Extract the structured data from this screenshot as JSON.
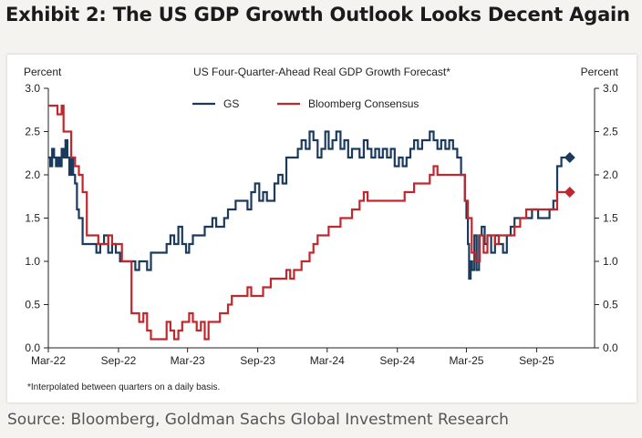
{
  "exhibit_title": "Exhibit 2: The US GDP Growth Outlook Looks Decent Again",
  "source": "Source: Bloomberg, Goldman Sachs Global Investment Research",
  "chart_data": {
    "type": "line",
    "title": "US Four-Quarter-Ahead Real GDP Growth Forecast*",
    "ylabel_left": "Percent",
    "ylabel_right": "Percent",
    "footnote": "*Interpolated between quarters on a daily basis.",
    "ylim": [
      0,
      3
    ],
    "yticks": [
      "0.0",
      "0.5",
      "1.0",
      "1.5",
      "2.0",
      "2.5",
      "3.0"
    ],
    "xlim": [
      "2022-03-01",
      "2026-01-31"
    ],
    "xticks": [
      {
        "date": "2022-03-01",
        "label": "Mar-22"
      },
      {
        "date": "2022-09-01",
        "label": "Sep-22"
      },
      {
        "date": "2023-03-01",
        "label": "Mar-23"
      },
      {
        "date": "2023-09-01",
        "label": "Sep-23"
      },
      {
        "date": "2024-03-01",
        "label": "Mar-24"
      },
      {
        "date": "2024-09-01",
        "label": "Sep-24"
      },
      {
        "date": "2025-03-01",
        "label": "Mar-25"
      },
      {
        "date": "2025-09-01",
        "label": "Sep-25"
      }
    ],
    "legend_position": "top-center",
    "series": [
      {
        "name": "GS",
        "color": "#1b3a5c",
        "end_marker": "diamond",
        "points": [
          [
            "2022-03-01",
            2.2
          ],
          [
            "2022-03-06",
            2.1
          ],
          [
            "2022-03-11",
            2.3
          ],
          [
            "2022-03-16",
            2.2
          ],
          [
            "2022-03-21",
            2.1
          ],
          [
            "2022-03-26",
            2.2
          ],
          [
            "2022-03-31",
            2.1
          ],
          [
            "2022-04-05",
            2.3
          ],
          [
            "2022-04-10",
            2.2
          ],
          [
            "2022-04-15",
            2.4
          ],
          [
            "2022-04-20",
            2.2
          ],
          [
            "2022-04-25",
            2.0
          ],
          [
            "2022-04-30",
            2.2
          ],
          [
            "2022-05-05",
            2.0
          ],
          [
            "2022-05-10",
            1.9
          ],
          [
            "2022-05-15",
            1.6
          ],
          [
            "2022-05-20",
            1.5
          ],
          [
            "2022-05-25",
            1.5
          ],
          [
            "2022-05-30",
            1.2
          ],
          [
            "2022-06-05",
            1.2
          ],
          [
            "2022-06-15",
            1.2
          ],
          [
            "2022-06-25",
            1.2
          ],
          [
            "2022-07-05",
            1.1
          ],
          [
            "2022-07-15",
            1.2
          ],
          [
            "2022-07-25",
            1.3
          ],
          [
            "2022-08-05",
            1.1
          ],
          [
            "2022-08-15",
            1.2
          ],
          [
            "2022-08-25",
            1.1
          ],
          [
            "2022-09-05",
            1.0
          ],
          [
            "2022-09-15",
            1.0
          ],
          [
            "2022-09-25",
            1.0
          ],
          [
            "2022-10-05",
            1.0
          ],
          [
            "2022-10-15",
            0.9
          ],
          [
            "2022-10-25",
            1.0
          ],
          [
            "2022-11-05",
            1.0
          ],
          [
            "2022-11-15",
            0.9
          ],
          [
            "2022-11-25",
            1.1
          ],
          [
            "2022-12-05",
            1.1
          ],
          [
            "2022-12-15",
            1.1
          ],
          [
            "2022-12-25",
            1.1
          ],
          [
            "2023-01-05",
            1.2
          ],
          [
            "2023-01-15",
            1.3
          ],
          [
            "2023-01-25",
            1.2
          ],
          [
            "2023-02-05",
            1.4
          ],
          [
            "2023-02-15",
            1.2
          ],
          [
            "2023-02-25",
            1.1
          ],
          [
            "2023-03-05",
            1.2
          ],
          [
            "2023-03-15",
            1.3
          ],
          [
            "2023-03-25",
            1.3
          ],
          [
            "2023-04-05",
            1.3
          ],
          [
            "2023-04-15",
            1.4
          ],
          [
            "2023-04-25",
            1.4
          ],
          [
            "2023-05-05",
            1.5
          ],
          [
            "2023-05-15",
            1.4
          ],
          [
            "2023-05-25",
            1.4
          ],
          [
            "2023-06-05",
            1.5
          ],
          [
            "2023-06-15",
            1.6
          ],
          [
            "2023-06-25",
            1.6
          ],
          [
            "2023-07-05",
            1.7
          ],
          [
            "2023-07-15",
            1.7
          ],
          [
            "2023-07-25",
            1.7
          ],
          [
            "2023-08-05",
            1.6
          ],
          [
            "2023-08-15",
            1.8
          ],
          [
            "2023-08-25",
            1.9
          ],
          [
            "2023-09-05",
            1.7
          ],
          [
            "2023-09-15",
            1.8
          ],
          [
            "2023-09-25",
            1.7
          ],
          [
            "2023-10-05",
            1.7
          ],
          [
            "2023-10-15",
            1.9
          ],
          [
            "2023-10-25",
            2.0
          ],
          [
            "2023-11-05",
            1.9
          ],
          [
            "2023-11-15",
            2.2
          ],
          [
            "2023-11-25",
            2.2
          ],
          [
            "2023-12-05",
            2.2
          ],
          [
            "2023-12-15",
            2.3
          ],
          [
            "2023-12-25",
            2.4
          ],
          [
            "2024-01-05",
            2.3
          ],
          [
            "2024-01-15",
            2.5
          ],
          [
            "2024-01-25",
            2.4
          ],
          [
            "2024-02-05",
            2.2
          ],
          [
            "2024-02-15",
            2.3
          ],
          [
            "2024-02-25",
            2.5
          ],
          [
            "2024-03-05",
            2.3
          ],
          [
            "2024-03-15",
            2.4
          ],
          [
            "2024-03-25",
            2.5
          ],
          [
            "2024-04-05",
            2.3
          ],
          [
            "2024-04-15",
            2.4
          ],
          [
            "2024-04-25",
            2.2
          ],
          [
            "2024-05-05",
            2.3
          ],
          [
            "2024-05-15",
            2.3
          ],
          [
            "2024-05-25",
            2.2
          ],
          [
            "2024-06-05",
            2.4
          ],
          [
            "2024-06-15",
            2.3
          ],
          [
            "2024-06-25",
            2.2
          ],
          [
            "2024-07-05",
            2.3
          ],
          [
            "2024-07-15",
            2.2
          ],
          [
            "2024-07-25",
            2.3
          ],
          [
            "2024-08-05",
            2.2
          ],
          [
            "2024-08-15",
            2.3
          ],
          [
            "2024-08-25",
            2.1
          ],
          [
            "2024-09-05",
            2.2
          ],
          [
            "2024-09-15",
            2.1
          ],
          [
            "2024-09-25",
            2.2
          ],
          [
            "2024-10-05",
            2.3
          ],
          [
            "2024-10-15",
            2.4
          ],
          [
            "2024-10-25",
            2.3
          ],
          [
            "2024-11-05",
            2.4
          ],
          [
            "2024-11-15",
            2.4
          ],
          [
            "2024-11-25",
            2.5
          ],
          [
            "2024-12-05",
            2.4
          ],
          [
            "2024-12-15",
            2.3
          ],
          [
            "2024-12-25",
            2.4
          ],
          [
            "2025-01-05",
            2.3
          ],
          [
            "2025-01-15",
            2.4
          ],
          [
            "2025-01-25",
            2.3
          ],
          [
            "2025-02-05",
            2.2
          ],
          [
            "2025-02-15",
            2.0
          ],
          [
            "2025-02-25",
            1.7
          ],
          [
            "2025-03-01",
            1.5
          ],
          [
            "2025-03-05",
            1.2
          ],
          [
            "2025-03-08",
            0.8
          ],
          [
            "2025-03-12",
            1.0
          ],
          [
            "2025-03-16",
            0.9
          ],
          [
            "2025-03-22",
            1.3
          ],
          [
            "2025-03-28",
            0.9
          ],
          [
            "2025-04-03",
            1.3
          ],
          [
            "2025-04-10",
            1.4
          ],
          [
            "2025-04-18",
            1.2
          ],
          [
            "2025-04-25",
            1.3
          ],
          [
            "2025-05-05",
            1.1
          ],
          [
            "2025-05-15",
            1.3
          ],
          [
            "2025-05-25",
            1.2
          ],
          [
            "2025-06-05",
            1.1
          ],
          [
            "2025-06-15",
            1.3
          ],
          [
            "2025-06-25",
            1.4
          ],
          [
            "2025-07-05",
            1.5
          ],
          [
            "2025-07-20",
            1.5
          ],
          [
            "2025-08-05",
            1.5
          ],
          [
            "2025-08-20",
            1.6
          ],
          [
            "2025-09-05",
            1.5
          ],
          [
            "2025-09-20",
            1.5
          ],
          [
            "2025-10-05",
            1.6
          ],
          [
            "2025-10-15",
            1.7
          ],
          [
            "2025-10-25",
            2.1
          ],
          [
            "2025-11-05",
            2.2
          ],
          [
            "2025-11-15",
            2.2
          ]
        ]
      },
      {
        "name": "Bloomberg Consensus",
        "color": "#c0282d",
        "end_marker": "diamond",
        "points": [
          [
            "2022-03-01",
            2.8
          ],
          [
            "2022-03-20",
            2.8
          ],
          [
            "2022-03-25",
            2.7
          ],
          [
            "2022-04-05",
            2.8
          ],
          [
            "2022-04-10",
            2.5
          ],
          [
            "2022-04-25",
            2.5
          ],
          [
            "2022-04-30",
            2.2
          ],
          [
            "2022-05-10",
            2.1
          ],
          [
            "2022-05-20",
            2.0
          ],
          [
            "2022-05-30",
            1.8
          ],
          [
            "2022-06-10",
            1.3
          ],
          [
            "2022-06-20",
            1.3
          ],
          [
            "2022-06-30",
            1.3
          ],
          [
            "2022-07-10",
            1.2
          ],
          [
            "2022-07-25",
            1.2
          ],
          [
            "2022-08-05",
            1.3
          ],
          [
            "2022-08-15",
            1.2
          ],
          [
            "2022-08-25",
            1.2
          ],
          [
            "2022-09-10",
            1.0
          ],
          [
            "2022-09-20",
            1.0
          ],
          [
            "2022-09-30",
            1.0
          ],
          [
            "2022-10-05",
            0.4
          ],
          [
            "2022-10-15",
            0.4
          ],
          [
            "2022-10-25",
            0.3
          ],
          [
            "2022-11-05",
            0.4
          ],
          [
            "2022-11-15",
            0.2
          ],
          [
            "2022-11-25",
            0.1
          ],
          [
            "2022-12-05",
            0.1
          ],
          [
            "2022-12-15",
            0.1
          ],
          [
            "2022-12-25",
            0.1
          ],
          [
            "2023-01-05",
            0.3
          ],
          [
            "2023-01-15",
            0.2
          ],
          [
            "2023-01-25",
            0.1
          ],
          [
            "2023-02-05",
            0.2
          ],
          [
            "2023-02-15",
            0.3
          ],
          [
            "2023-02-25",
            0.3
          ],
          [
            "2023-03-05",
            0.4
          ],
          [
            "2023-03-15",
            0.3
          ],
          [
            "2023-03-25",
            0.2
          ],
          [
            "2023-04-05",
            0.3
          ],
          [
            "2023-04-15",
            0.1
          ],
          [
            "2023-04-25",
            0.3
          ],
          [
            "2023-05-05",
            0.3
          ],
          [
            "2023-05-15",
            0.3
          ],
          [
            "2023-05-25",
            0.4
          ],
          [
            "2023-06-05",
            0.4
          ],
          [
            "2023-06-15",
            0.5
          ],
          [
            "2023-06-25",
            0.6
          ],
          [
            "2023-07-05",
            0.6
          ],
          [
            "2023-07-15",
            0.6
          ],
          [
            "2023-07-25",
            0.6
          ],
          [
            "2023-08-05",
            0.7
          ],
          [
            "2023-08-15",
            0.6
          ],
          [
            "2023-08-25",
            0.6
          ],
          [
            "2023-09-05",
            0.6
          ],
          [
            "2023-09-15",
            0.7
          ],
          [
            "2023-09-25",
            0.7
          ],
          [
            "2023-10-05",
            0.8
          ],
          [
            "2023-10-15",
            0.8
          ],
          [
            "2023-10-25",
            0.8
          ],
          [
            "2023-11-05",
            0.8
          ],
          [
            "2023-11-15",
            0.9
          ],
          [
            "2023-11-25",
            0.8
          ],
          [
            "2023-12-05",
            0.9
          ],
          [
            "2023-12-15",
            0.9
          ],
          [
            "2023-12-25",
            1.0
          ],
          [
            "2024-01-05",
            1.0
          ],
          [
            "2024-01-15",
            1.1
          ],
          [
            "2024-01-25",
            1.2
          ],
          [
            "2024-02-05",
            1.3
          ],
          [
            "2024-02-15",
            1.3
          ],
          [
            "2024-02-25",
            1.3
          ],
          [
            "2024-03-05",
            1.4
          ],
          [
            "2024-03-15",
            1.4
          ],
          [
            "2024-03-25",
            1.4
          ],
          [
            "2024-04-05",
            1.5
          ],
          [
            "2024-04-15",
            1.5
          ],
          [
            "2024-04-25",
            1.5
          ],
          [
            "2024-05-05",
            1.6
          ],
          [
            "2024-05-15",
            1.6
          ],
          [
            "2024-05-25",
            1.7
          ],
          [
            "2024-06-05",
            1.8
          ],
          [
            "2024-06-15",
            1.7
          ],
          [
            "2024-06-25",
            1.7
          ],
          [
            "2024-07-05",
            1.7
          ],
          [
            "2024-07-20",
            1.7
          ],
          [
            "2024-08-05",
            1.7
          ],
          [
            "2024-08-20",
            1.7
          ],
          [
            "2024-09-05",
            1.7
          ],
          [
            "2024-09-20",
            1.8
          ],
          [
            "2024-10-05",
            1.8
          ],
          [
            "2024-10-15",
            1.9
          ],
          [
            "2024-10-25",
            1.9
          ],
          [
            "2024-11-05",
            1.9
          ],
          [
            "2024-11-15",
            1.9
          ],
          [
            "2024-11-25",
            2.0
          ],
          [
            "2024-12-05",
            2.1
          ],
          [
            "2024-12-15",
            2.0
          ],
          [
            "2024-12-25",
            2.0
          ],
          [
            "2025-01-05",
            2.0
          ],
          [
            "2025-01-15",
            2.0
          ],
          [
            "2025-01-25",
            2.0
          ],
          [
            "2025-02-05",
            2.0
          ],
          [
            "2025-02-15",
            2.0
          ],
          [
            "2025-02-25",
            1.7
          ],
          [
            "2025-03-05",
            1.5
          ],
          [
            "2025-03-15",
            1.1
          ],
          [
            "2025-03-25",
            1.0
          ],
          [
            "2025-04-05",
            1.3
          ],
          [
            "2025-04-15",
            1.1
          ],
          [
            "2025-04-25",
            1.3
          ],
          [
            "2025-05-05",
            1.3
          ],
          [
            "2025-05-15",
            1.2
          ],
          [
            "2025-05-25",
            1.3
          ],
          [
            "2025-06-05",
            1.3
          ],
          [
            "2025-06-20",
            1.3
          ],
          [
            "2025-07-05",
            1.4
          ],
          [
            "2025-07-20",
            1.5
          ],
          [
            "2025-08-05",
            1.6
          ],
          [
            "2025-08-20",
            1.6
          ],
          [
            "2025-09-05",
            1.6
          ],
          [
            "2025-09-20",
            1.6
          ],
          [
            "2025-10-05",
            1.6
          ],
          [
            "2025-10-15",
            1.6
          ],
          [
            "2025-10-25",
            1.8
          ],
          [
            "2025-11-15",
            1.8
          ]
        ]
      }
    ]
  }
}
